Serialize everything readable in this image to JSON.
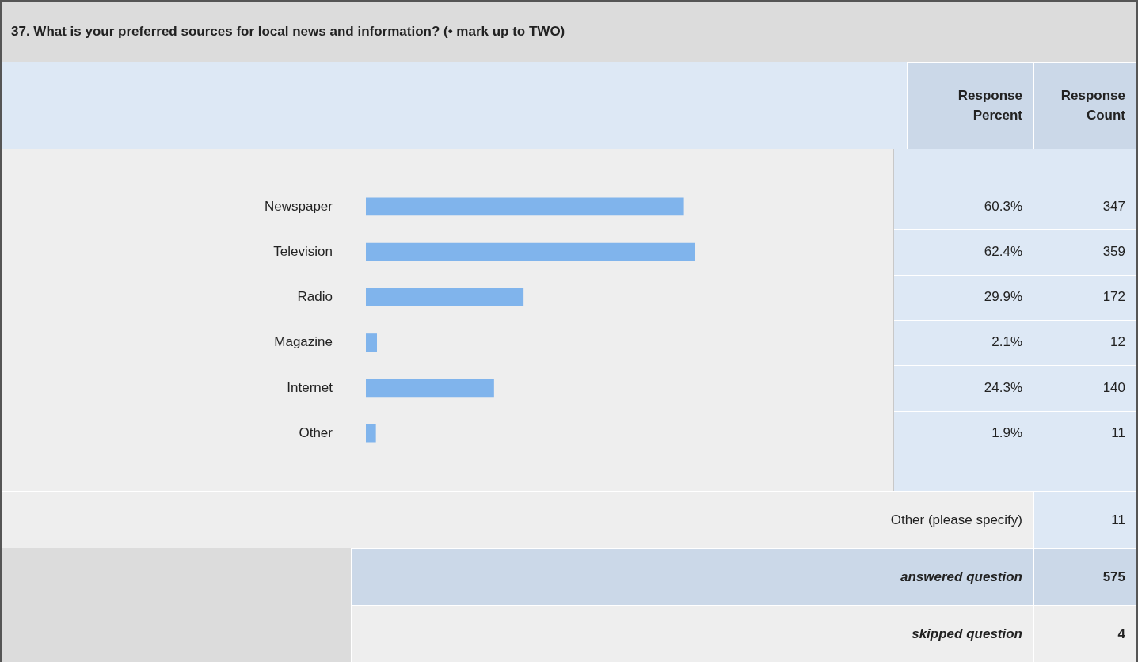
{
  "chart_data": {
    "type": "bar",
    "orientation": "horizontal",
    "title": "37. What is your preferred sources for local news and information? (• mark up to TWO)",
    "categories": [
      "Newspaper",
      "Television",
      "Radio",
      "Magazine",
      "Internet",
      "Other"
    ],
    "series": [
      {
        "color": "#80b4ec",
        "values": [
          60.3,
          62.4,
          29.9,
          2.1,
          24.3,
          1.9
        ],
        "value_labels": [
          "60.3%",
          "62.4%",
          "29.9%",
          "2.1%",
          "24.3%",
          "1.9%"
        ]
      }
    ],
    "xlim": [
      0,
      100
    ],
    "tick_labels": "y",
    "grid": false,
    "legend": false,
    "annotations": [
      "Response Percent",
      "Response Count",
      "347",
      "359",
      "172",
      "12",
      "140",
      "11",
      "Other (please specify)",
      "11",
      "answered question",
      "575",
      "skipped question",
      "4"
    ]
  }
}
